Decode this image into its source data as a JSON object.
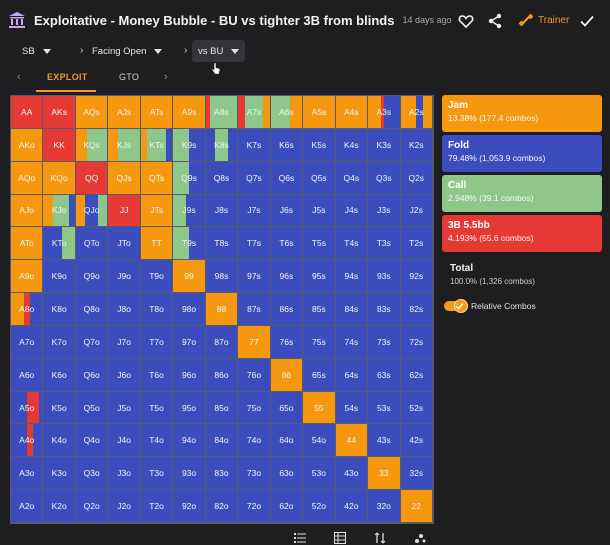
{
  "header": {
    "title": "Exploitative - Money Bubble - BU vs tighter 3B from blinds",
    "time": "14 days ago",
    "trainer_label": "Trainer"
  },
  "breadcrumbs": [
    {
      "label": "SB"
    },
    {
      "label": "Facing Open"
    },
    {
      "label": "vs BU"
    }
  ],
  "tabs": [
    {
      "label": "EXPLOIT",
      "active": true
    },
    {
      "label": "GTO",
      "active": false
    }
  ],
  "colors": {
    "jam": "#e53935",
    "fold": "#3b4dbd",
    "call": "#8fc78a",
    "threebet": "#f59810",
    "accent": "#f39a1e"
  },
  "legend": [
    {
      "name": "Jam",
      "value": "13.38% (177.4 combos)",
      "color": "#f59810"
    },
    {
      "name": "Fold",
      "value": "79.48% (1,053.9 combos)",
      "color": "#3b4dbd"
    },
    {
      "name": "Call",
      "value": "2.948% (39.1 combos)",
      "color": "#8fc78a"
    },
    {
      "name": "3B 5.5bb",
      "value": "4.193% (55.6 combos)",
      "color": "#e53935"
    }
  ],
  "total": {
    "label": "Total",
    "value": "100.0% (1,326 combos)"
  },
  "relative_combos_label": "Relative Combos",
  "grid": {
    "rows": [
      [
        "AA",
        "AKs",
        "AQs",
        "AJs",
        "ATs",
        "A9s",
        "A8s",
        "A7s",
        "A6s",
        "A5s",
        "A4s",
        "A3s",
        "A2s"
      ],
      [
        "AKo",
        "KK",
        "KQs",
        "KJs",
        "KTs",
        "K9s",
        "K8s",
        "K7s",
        "K6s",
        "K5s",
        "K4s",
        "K3s",
        "K2s"
      ],
      [
        "AQo",
        "KQo",
        "QQ",
        "QJs",
        "QTs",
        "Q9s",
        "Q8s",
        "Q7s",
        "Q6s",
        "Q5s",
        "Q4s",
        "Q3s",
        "Q2s"
      ],
      [
        "AJo",
        "KJo",
        "QJo",
        "JJ",
        "JTs",
        "J9s",
        "J8s",
        "J7s",
        "J6s",
        "J5s",
        "J4s",
        "J3s",
        "J2s"
      ],
      [
        "ATo",
        "KTo",
        "QTo",
        "JTo",
        "TT",
        "T9s",
        "T8s",
        "T7s",
        "T6s",
        "T5s",
        "T4s",
        "T3s",
        "T2s"
      ],
      [
        "A9o",
        "K9o",
        "Q9o",
        "J9o",
        "T9o",
        "99",
        "98s",
        "97s",
        "96s",
        "95s",
        "94s",
        "93s",
        "92s"
      ],
      [
        "A8o",
        "K8o",
        "Q8o",
        "J8o",
        "T8o",
        "98o",
        "88",
        "87s",
        "86s",
        "85s",
        "84s",
        "83s",
        "82s"
      ],
      [
        "A7o",
        "K7o",
        "Q7o",
        "J7o",
        "T7o",
        "97o",
        "87o",
        "77",
        "76s",
        "75s",
        "74s",
        "73s",
        "72s"
      ],
      [
        "A6o",
        "K6o",
        "Q6o",
        "J6o",
        "T6o",
        "96o",
        "86o",
        "76o",
        "66",
        "65s",
        "64s",
        "63s",
        "62s"
      ],
      [
        "A5o",
        "K5o",
        "Q5o",
        "J5o",
        "T5o",
        "95o",
        "85o",
        "75o",
        "65o",
        "55",
        "54s",
        "53s",
        "52s"
      ],
      [
        "A4o",
        "K4o",
        "Q4o",
        "J4o",
        "T4o",
        "94o",
        "84o",
        "74o",
        "64o",
        "54o",
        "44",
        "43s",
        "42s"
      ],
      [
        "A3o",
        "K3o",
        "Q3o",
        "J3o",
        "T3o",
        "93o",
        "83o",
        "73o",
        "63o",
        "53o",
        "43o",
        "33",
        "32s"
      ],
      [
        "A2o",
        "K2o",
        "Q2o",
        "J2o",
        "T2o",
        "92o",
        "82o",
        "72o",
        "62o",
        "52o",
        "42o",
        "32o",
        "22"
      ]
    ],
    "mixes": {
      "AA": [
        [
          "jam",
          1
        ]
      ],
      "AKs": [
        [
          "jam",
          1
        ]
      ],
      "AQs": [
        [
          "threebet",
          1
        ]
      ],
      "AJs": [
        [
          "threebet",
          1
        ]
      ],
      "ATs": [
        [
          "threebet",
          1
        ]
      ],
      "A9s": [
        [
          "threebet",
          1
        ]
      ],
      "A8s": [
        [
          "jam",
          0.15
        ],
        [
          "call",
          0.85
        ]
      ],
      "A7s": [
        [
          "jam",
          0.2
        ],
        [
          "call",
          0.6
        ],
        [
          "threebet",
          0.2
        ]
      ],
      "A6s": [
        [
          "call",
          0.6
        ],
        [
          "threebet",
          0.4
        ]
      ],
      "A5s": [
        [
          "threebet",
          1
        ]
      ],
      "A4s": [
        [
          "threebet",
          1
        ]
      ],
      "A3s": [
        [
          "threebet",
          0.4
        ],
        [
          "jam",
          0.1
        ],
        [
          "fold",
          0.5
        ]
      ],
      "A2s": [
        [
          "threebet",
          0.5
        ],
        [
          "fold",
          0.2
        ],
        [
          "threebet",
          0.3
        ]
      ],
      "AKo": [
        [
          "threebet",
          1
        ]
      ],
      "KK": [
        [
          "jam",
          1
        ]
      ],
      "KQs": [
        [
          "threebet",
          0.35
        ],
        [
          "call",
          0.65
        ]
      ],
      "KJs": [
        [
          "threebet",
          0.3
        ],
        [
          "call",
          0.7
        ]
      ],
      "KTs": [
        [
          "threebet",
          0.2
        ],
        [
          "call",
          0.6
        ],
        [
          "fold",
          0.2
        ]
      ],
      "K9s": [
        [
          "call",
          0.5
        ],
        [
          "fold",
          0.5
        ]
      ],
      "K8s": [
        [
          "fold",
          0.3
        ],
        [
          "call",
          0.4
        ],
        [
          "fold",
          0.3
        ]
      ],
      "AQo": [
        [
          "threebet",
          1
        ]
      ],
      "KQo": [
        [
          "threebet",
          1
        ]
      ],
      "QQ": [
        [
          "jam",
          1
        ]
      ],
      "QJs": [
        [
          "threebet",
          1
        ]
      ],
      "QTs": [
        [
          "threebet",
          1
        ]
      ],
      "Q9s": [
        [
          "call",
          0.5
        ],
        [
          "fold",
          0.5
        ]
      ],
      "AJo": [
        [
          "threebet",
          1
        ]
      ],
      "KJo": [
        [
          "threebet",
          0.3
        ],
        [
          "call",
          0.5
        ],
        [
          "fold",
          0.2
        ]
      ],
      "QJo": [
        [
          "threebet",
          0.3
        ],
        [
          "fold",
          0.4
        ],
        [
          "call",
          0.3
        ]
      ],
      "JJ": [
        [
          "jam",
          1
        ]
      ],
      "JTs": [
        [
          "threebet",
          1
        ]
      ],
      "J9s": [
        [
          "call",
          0.4
        ],
        [
          "fold",
          0.6
        ]
      ],
      "ATo": [
        [
          "threebet",
          1
        ]
      ],
      "KTo": [
        [
          "fold",
          0.6
        ],
        [
          "call",
          0.4
        ]
      ],
      "TT": [
        [
          "threebet",
          1
        ]
      ],
      "T9s": [
        [
          "call",
          0.5
        ],
        [
          "fold",
          0.5
        ]
      ],
      "A9o": [
        [
          "threebet",
          1
        ]
      ],
      "99": [
        [
          "threebet",
          1
        ]
      ],
      "A8o": [
        [
          "threebet",
          0.4
        ],
        [
          "jam",
          0.2
        ],
        [
          "fold",
          0.4
        ]
      ],
      "88": [
        [
          "threebet",
          1
        ]
      ],
      "77": [
        [
          "threebet",
          1
        ]
      ],
      "66": [
        [
          "threebet",
          1
        ]
      ],
      "A5o": [
        [
          "fold",
          0.5
        ],
        [
          "jam",
          0.4
        ],
        [
          "fold",
          0.1
        ]
      ],
      "55": [
        [
          "threebet",
          1
        ]
      ],
      "A4o": [
        [
          "fold",
          0.5
        ],
        [
          "jam",
          0.2
        ],
        [
          "fold",
          0.3
        ]
      ],
      "44": [
        [
          "threebet",
          1
        ]
      ],
      "33": [
        [
          "threebet",
          1
        ]
      ],
      "22": [
        [
          "threebet",
          1
        ]
      ]
    }
  }
}
